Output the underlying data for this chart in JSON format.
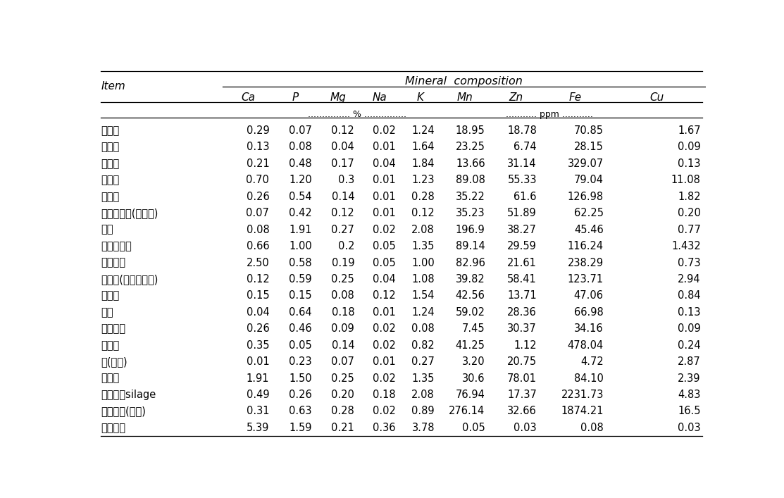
{
  "title": "Mineral  composition",
  "col_header": [
    "Item",
    "Ca",
    "P",
    "Mg",
    "Na",
    "K",
    "Mn",
    "Zn",
    "Fe",
    "Cu"
  ],
  "rows": [
    [
      "감귈박",
      "0.29",
      "0.07",
      "0.12",
      "0.02",
      "1.24",
      "18.95",
      "18.78",
      "70.85",
      "1.67"
    ],
    [
      "감껍질",
      "0.13",
      "0.08",
      "0.04",
      "0.01",
      "1.64",
      "23.25",
      "6.74",
      "28.15",
      "0.09"
    ],
    [
      "단백피",
      "0.21",
      "0.48",
      "0.17",
      "0.04",
      "1.84",
      "13.66",
      "31.14",
      "329.07",
      "0.13"
    ],
    [
      "들깧묵",
      "0.70",
      "1.20",
      "0.3",
      "0.01",
      "1.23",
      "89.08",
      "55.33",
      "79.04",
      "11.08"
    ],
    [
      "맥주박",
      "0.26",
      "0.54",
      "0.14",
      "0.01",
      "0.28",
      "35.22",
      "61.6",
      "126.98",
      "1.82"
    ],
    [
      "맥콜부산물(보리박)",
      "0.07",
      "0.42",
      "0.12",
      "0.01",
      "0.12",
      "35.23",
      "51.89",
      "62.25",
      "0.20"
    ],
    [
      "미강",
      "0.08",
      "1.91",
      "0.27",
      "0.02",
      "2.08",
      "196.9",
      "38.27",
      "45.46",
      "0.77"
    ],
    [
      "버섯폐배지",
      "0.66",
      "1.00",
      "0.2",
      "0.05",
      "1.35",
      "89.14",
      "29.59",
      "116.24",
      "1.432"
    ],
    [
      "보리가루",
      "2.50",
      "0.58",
      "0.19",
      "0.05",
      "1.00",
      "82.96",
      "21.61",
      "238.29",
      "0.73"
    ],
    [
      "보리피(알곡껍데기)",
      "0.12",
      "0.59",
      "0.25",
      "0.04",
      "1.08",
      "39.82",
      "58.41",
      "123.71",
      "2.94"
    ],
    [
      "소맥피",
      "0.15",
      "0.15",
      "0.08",
      "0.12",
      "1.54",
      "42.56",
      "13.71",
      "47.06",
      "0.84"
    ],
    [
      "얿밥",
      "0.04",
      "0.64",
      "0.18",
      "0.01",
      "1.24",
      "59.02",
      "28.36",
      "66.98",
      "0.13"
    ],
    [
      "옥대펜렛",
      "0.26",
      "0.46",
      "0.09",
      "0.02",
      "0.08",
      "7.45",
      "30.37",
      "34.16",
      "0.09"
    ],
    [
      "장유박",
      "0.35",
      "0.05",
      "0.14",
      "0.02",
      "0.82",
      "41.25",
      "1.12",
      "478.04",
      "0.24"
    ],
    [
      "조(알곡)",
      "0.01",
      "0.23",
      "0.07",
      "0.01",
      "0.27",
      "3.20",
      "20.75",
      "4.72",
      "2.87"
    ],
    [
      "참깨박",
      "1.91",
      "1.50",
      "0.25",
      "0.02",
      "1.35",
      "30.6",
      "78.01",
      "84.10",
      "2.39"
    ],
    [
      "총체보리silage",
      "0.49",
      "0.26",
      "0.20",
      "0.18",
      "2.08",
      "76.94",
      "17.37",
      "2231.73",
      "4.83"
    ],
    [
      "팔커널박(펜렛)",
      "0.31",
      "0.63",
      "0.28",
      "0.02",
      "0.89",
      "276.14",
      "32.66",
      "1874.21",
      "16.5"
    ],
    [
      "양계깔개",
      "5.39",
      "1.59",
      "0.21",
      "0.36",
      "3.78",
      "0.05",
      "0.03",
      "0.08",
      "0.03"
    ]
  ],
  "background_color": "#ffffff",
  "text_color": "#000000",
  "line_color": "#000000"
}
